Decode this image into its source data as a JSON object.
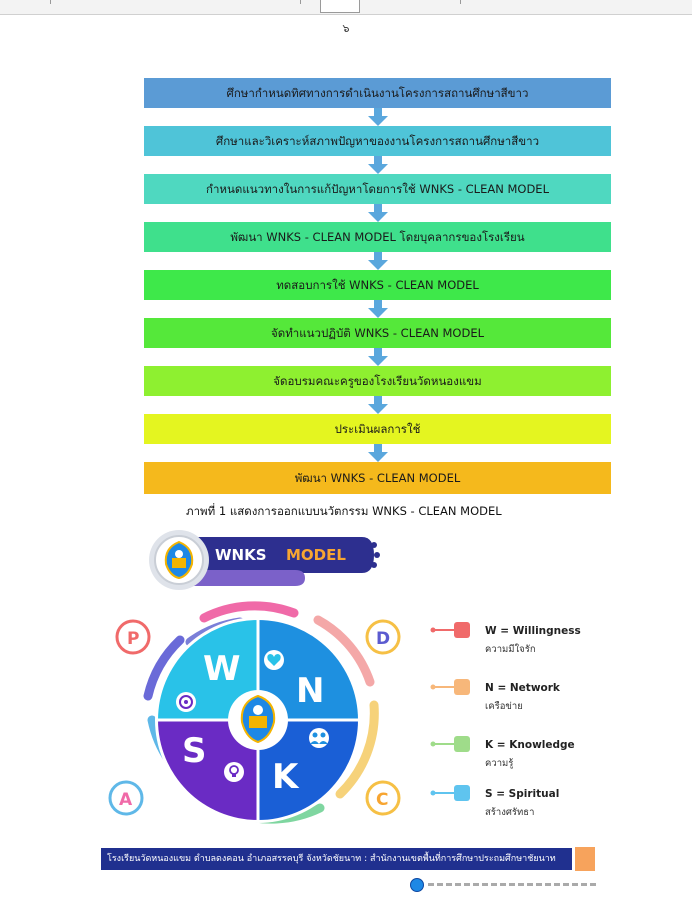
{
  "page": {
    "number": "๖"
  },
  "flowchart": {
    "steps": [
      {
        "label": "ศึกษากำหนดทิศทางการดำเนินงานโครงการสถานศึกษาสีขาว",
        "color": "#5b9bd5"
      },
      {
        "label": "ศึกษาและวิเคราะห์สภาพปัญหาของงานโครงการสถานศึกษาสีขาว",
        "color": "#4fc4d8"
      },
      {
        "label": "กำหนดแนวทางในการแก้ปัญหาโดยการใช้ WNKS - CLEAN MODEL",
        "color": "#4fd8c0"
      },
      {
        "label": "พัฒนา WNKS - CLEAN MODEL โดยบุคลากรของโรงเรียน",
        "color": "#3fe08c"
      },
      {
        "label": "ทดสอบการใช้ WNKS - CLEAN MODEL",
        "color": "#3ee84a"
      },
      {
        "label": "จัดทำแนวปฏิบัติ WNKS - CLEAN MODEL",
        "color": "#55e83a"
      },
      {
        "label": "จัดอบรมคณะครูของโรงเรียนวัดหนองแขม",
        "color": "#8ef030"
      },
      {
        "label": "ประเมินผลการใช้",
        "color": "#e4f520"
      },
      {
        "label": "พัฒนา WNKS - CLEAN MODEL",
        "color": "#f5b91c"
      }
    ],
    "caption": "ภาพที่ 1 แสดงการออกแบบนวัตกรรม WNKS - CLEAN MODEL"
  },
  "model": {
    "banner": {
      "word1": "WNKS",
      "word2": "MODEL"
    },
    "pieces": {
      "w": "W",
      "n": "N",
      "s": "S",
      "k": "K"
    },
    "ring": {
      "p": "P",
      "d": "D",
      "a": "A",
      "c": "C"
    },
    "legend": [
      {
        "title": "W = Willingness",
        "subtitle": "ความมีใจรัก",
        "color": "#f06a6a"
      },
      {
        "title": "N = Network",
        "subtitle": "เครือข่าย",
        "color": "#f7b77a"
      },
      {
        "title": "K = Knowledge",
        "subtitle": "ความรู้",
        "color": "#9fdc8a"
      },
      {
        "title": "S = Spiritual",
        "subtitle": "สร้างศรัทธา",
        "color": "#5fc4ef"
      }
    ]
  },
  "footer": {
    "text": "โรงเรียนวัดหนองแขม ตำบลดงคอน อำเภอสรรคบุรี จังหวัดชัยนาท  : สำนักงานเขตพื้นที่การศึกษาประถมศึกษาชัยนาท"
  },
  "colors": {
    "arrow": "#5aa7dd",
    "banner_blue": "#2d2f8f",
    "banner_orange": "#f7a531",
    "footer_bar": "#20308f"
  }
}
